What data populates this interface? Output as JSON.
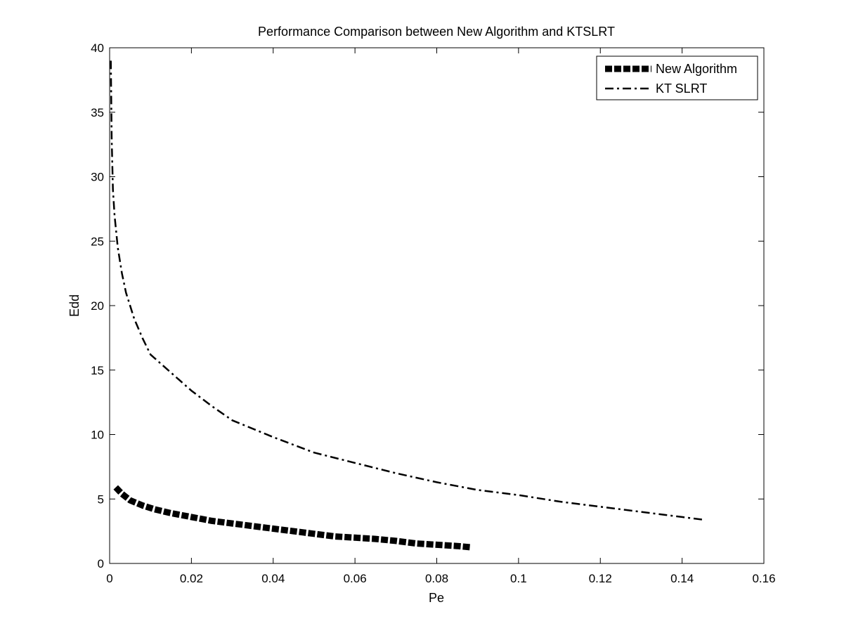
{
  "chart_data": {
    "type": "line",
    "title": "Performance Comparison between New Algorithm and KTSLRT",
    "xlabel": "Pe",
    "ylabel": "Edd",
    "xlim": [
      0,
      0.16
    ],
    "ylim": [
      0,
      40
    ],
    "x_ticks": [
      0,
      0.02,
      0.04,
      0.06,
      0.08,
      0.1,
      0.12,
      0.14,
      0.16
    ],
    "x_tick_labels": [
      "0",
      "0.02",
      "0.04",
      "0.06",
      "0.08",
      "0.1",
      "0.12",
      "0.14",
      "0.16"
    ],
    "y_ticks": [
      0,
      5,
      10,
      15,
      20,
      25,
      30,
      35,
      40
    ],
    "y_tick_labels": [
      "0",
      "5",
      "10",
      "15",
      "20",
      "25",
      "30",
      "35",
      "40"
    ],
    "grid": false,
    "legend_position": "top-right",
    "series": [
      {
        "name": "New Algorithm",
        "style": "thick-dashed",
        "color": "#000000",
        "x": [
          0.0015,
          0.003,
          0.005,
          0.008,
          0.011,
          0.015,
          0.02,
          0.025,
          0.03,
          0.035,
          0.04,
          0.045,
          0.05,
          0.055,
          0.06,
          0.065,
          0.07,
          0.075,
          0.08,
          0.085,
          0.0885
        ],
        "y": [
          5.9,
          5.4,
          4.9,
          4.5,
          4.2,
          3.9,
          3.6,
          3.3,
          3.1,
          2.9,
          2.7,
          2.5,
          2.3,
          2.1,
          2.0,
          1.9,
          1.75,
          1.55,
          1.45,
          1.35,
          1.25
        ]
      },
      {
        "name": "KT SLRT",
        "style": "dash-dot",
        "color": "#000000",
        "x": [
          0.0003,
          0.0005,
          0.0008,
          0.0012,
          0.002,
          0.003,
          0.004,
          0.006,
          0.008,
          0.01,
          0.015,
          0.02,
          0.025,
          0.03,
          0.04,
          0.05,
          0.06,
          0.07,
          0.08,
          0.09,
          0.1,
          0.11,
          0.12,
          0.13,
          0.14,
          0.145
        ],
        "y": [
          39,
          33,
          29,
          27,
          24.5,
          22.5,
          21,
          19,
          17.5,
          16.2,
          14.8,
          13.4,
          12.2,
          11.1,
          9.8,
          8.6,
          7.8,
          7.0,
          6.3,
          5.7,
          5.3,
          4.8,
          4.4,
          4.0,
          3.6,
          3.4
        ]
      }
    ]
  }
}
